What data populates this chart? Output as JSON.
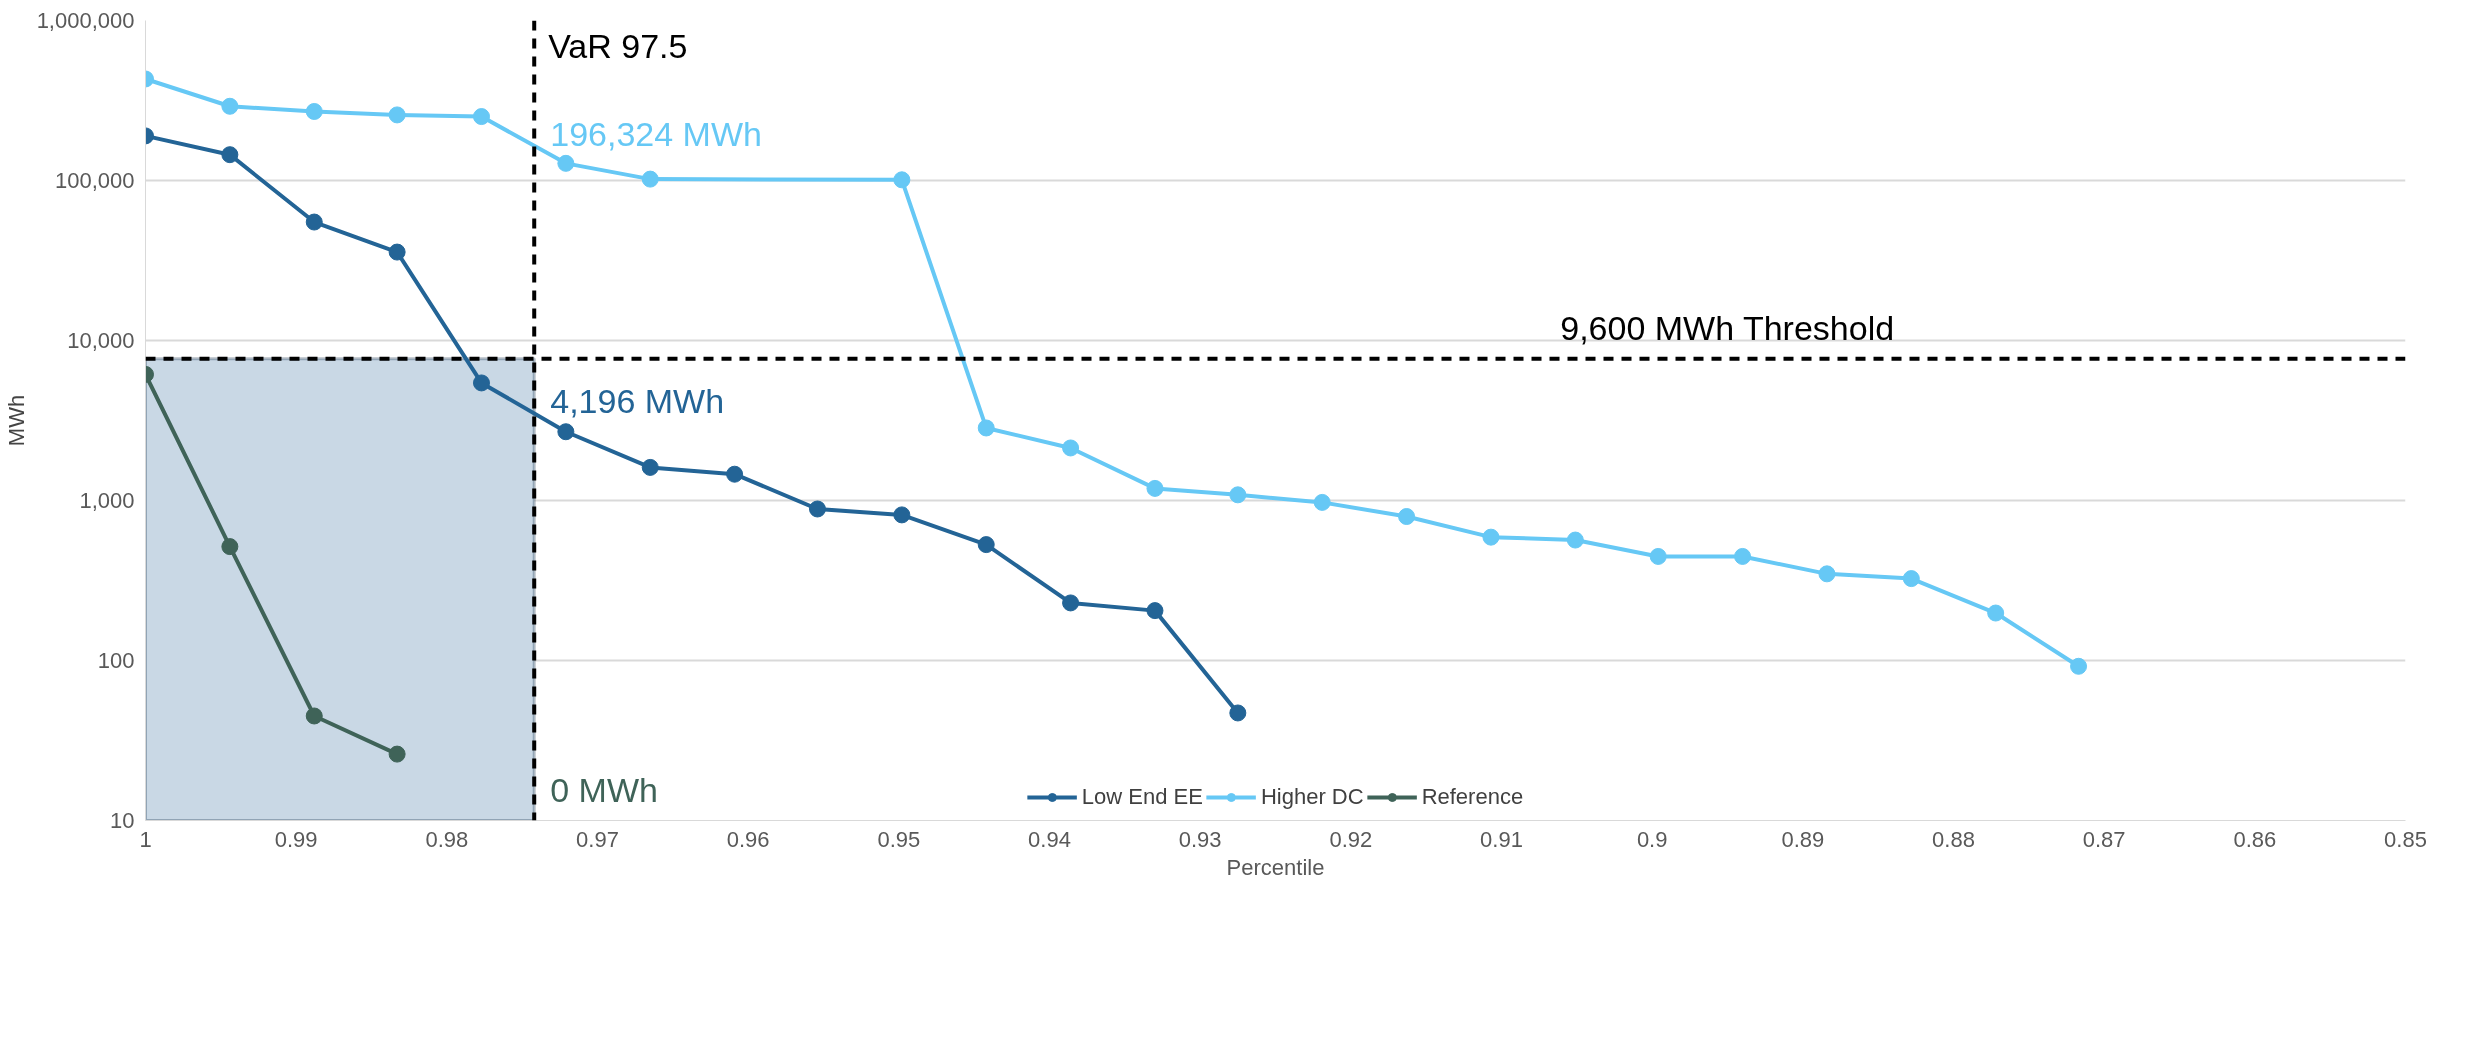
{
  "chart_data": {
    "type": "line",
    "xlabel": "Percentile",
    "ylabel": "MWh",
    "log": "y",
    "grid": "y",
    "legend": "bottom",
    "marker": "circle",
    "line_style": "solid",
    "xlim": [
      1,
      0.85
    ],
    "ylim": [
      10,
      1000000
    ],
    "xticks": [
      1,
      0.99,
      0.98,
      0.97,
      0.96,
      0.95,
      0.94,
      0.93,
      0.92,
      0.91,
      0.9,
      0.89,
      0.88,
      0.87,
      0.86,
      0.85
    ],
    "yticks": [
      10,
      100,
      {
        "value": 1000,
        "label": "1,000"
      },
      {
        "value": 10000,
        "label": "10,000"
      },
      {
        "value": 100000,
        "label": "100,000"
      },
      {
        "value": 1000000,
        "label": "1,000,000"
      }
    ],
    "series": [
      {
        "name": "Low End EE",
        "color": "#236496",
        "x": [
          1,
          0.9944,
          0.9888,
          0.9833,
          0.9777,
          0.9721,
          0.9665,
          0.9609,
          0.9554,
          0.9498,
          0.9442,
          0.9386,
          0.933,
          0.9275
        ],
        "values": [
          190000,
          145000,
          55000,
          35700,
          5430,
          2690,
          1610,
          1460,
          885,
          813,
          530,
          229,
          205,
          47
        ]
      },
      {
        "name": "Higher DC",
        "color": "#66c8f5",
        "x": [
          1,
          0.9944,
          0.9888,
          0.9833,
          0.9777,
          0.9721,
          0.9665,
          0.9498,
          0.9442,
          0.9386,
          0.933,
          0.9275,
          0.9219,
          0.9163,
          0.9107,
          0.9051,
          0.8996,
          0.894,
          0.8884,
          0.8828,
          0.8772,
          0.8717
        ],
        "values": [
          431000,
          291000,
          270000,
          257000,
          251000,
          128000,
          102000,
          101000,
          2840,
          2130,
          1190,
          1085,
          973,
          794,
          590,
          566,
          447,
          447,
          348,
          325,
          198,
          92
        ]
      },
      {
        "name": "Reference",
        "color": "#3f6358",
        "x": [
          1,
          0.9944,
          0.9888,
          0.9833
        ],
        "values": [
          6140,
          515,
          45,
          26
        ]
      }
    ],
    "ref_lines": [
      {
        "axis": "x",
        "value": 0.9742,
        "label": "VaR 97.5",
        "color": "#000000",
        "line_style": "dashed"
      },
      {
        "axis": "y",
        "value": 7700,
        "label": "9,600 MWh Threshold",
        "color": "#000000",
        "line_style": "dashed"
      }
    ],
    "bands": [
      {
        "axis": "x",
        "from": 1,
        "to": 0.9742,
        "color": "#c9d8e5"
      }
    ],
    "annotations": [
      {
        "text": "4,196 MWh",
        "x": 0.9742,
        "y": 4196
      },
      {
        "text": "196,324 MWh",
        "x": 0.9742,
        "y": 196324
      },
      "0 MWh"
    ]
  }
}
